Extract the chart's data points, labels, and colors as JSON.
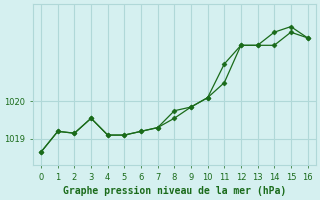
{
  "line1_x": [
    0,
    1,
    2,
    3,
    4,
    5,
    6,
    7,
    8,
    9,
    10,
    11,
    12,
    13,
    14,
    15,
    16
  ],
  "line1_y": [
    1018.65,
    1019.2,
    1019.15,
    1019.55,
    1019.1,
    1019.1,
    1019.2,
    1019.3,
    1019.55,
    1019.85,
    1020.1,
    1020.5,
    1021.5,
    1021.5,
    1021.5,
    1021.85,
    1021.7
  ],
  "line2_x": [
    0,
    1,
    2,
    3,
    4,
    5,
    6,
    7,
    8,
    9,
    10,
    11,
    12,
    13,
    14,
    15,
    16
  ],
  "line2_y": [
    1018.65,
    1019.2,
    1019.15,
    1019.55,
    1019.1,
    1019.1,
    1019.2,
    1019.3,
    1019.75,
    1019.85,
    1020.1,
    1021.0,
    1021.5,
    1021.5,
    1021.85,
    1022.0,
    1021.7
  ],
  "line_color": "#1a6b1a",
  "bg_color": "#d5f0f0",
  "grid_color": "#b0d8d8",
  "xlabel": "Graphe pression niveau de la mer (hPa)",
  "xlabel_color": "#1a6b1a",
  "xlabel_fontsize": 7,
  "yticks": [
    1019,
    1020
  ],
  "ylim": [
    1018.3,
    1022.6
  ],
  "xlim": [
    -0.5,
    16.5
  ],
  "xticks": [
    0,
    1,
    2,
    3,
    4,
    5,
    6,
    7,
    8,
    9,
    10,
    11,
    12,
    13,
    14,
    15,
    16
  ]
}
